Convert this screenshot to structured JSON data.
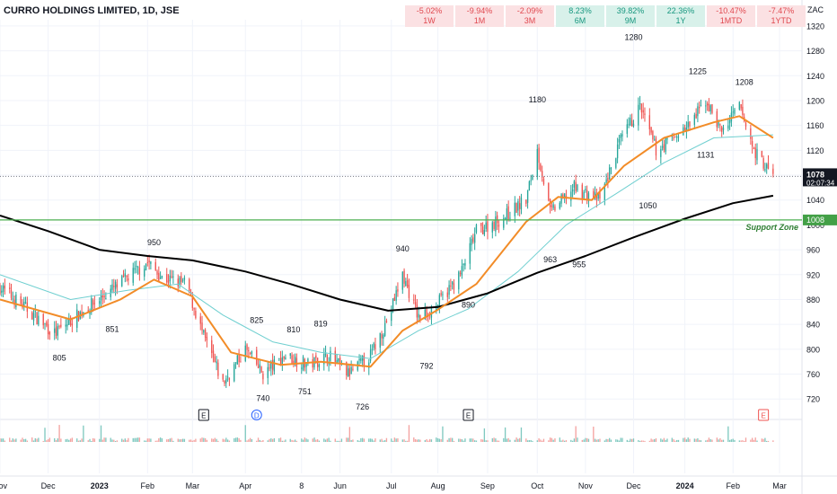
{
  "header": {
    "symbol_title": "CURRO HOLDINGS LIMITED, 1D, JSE",
    "currency": "ZAC"
  },
  "performance": [
    {
      "value": "-5.02%",
      "period": "1W",
      "positive": false
    },
    {
      "value": "-9.94%",
      "period": "1M",
      "positive": false
    },
    {
      "value": "-2.09%",
      "period": "3M",
      "positive": false
    },
    {
      "value": "8.23%",
      "period": "6M",
      "positive": true
    },
    {
      "value": "39.82%",
      "period": "9M",
      "positive": true
    },
    {
      "value": "22.36%",
      "period": "1Y",
      "positive": true
    },
    {
      "value": "-10.47%",
      "period": "1MTD",
      "positive": false
    },
    {
      "value": "-7.47%",
      "period": "1YTD",
      "positive": false
    }
  ],
  "colors": {
    "up": "#26a69a",
    "down": "#ef5350",
    "ema_short": "#f28c28",
    "ma_mid": "#6fcfd0",
    "ma_long": "#000000",
    "support": "#4caf50",
    "support_text": "#2e7d32"
  },
  "chart_data": {
    "type": "line",
    "y_axis": {
      "ticks": [
        720,
        760,
        800,
        840,
        880,
        920,
        960,
        1000,
        1040,
        1080,
        1120,
        1160,
        1200,
        1240,
        1280,
        1320
      ],
      "range": [
        690,
        1330
      ]
    },
    "x_axis": {
      "range": [
        "2022-11-01",
        "2024-03-15"
      ],
      "tick_labels": [
        {
          "date": "2022-11-01",
          "label": "Nov",
          "bold": false
        },
        {
          "date": "2022-12-01",
          "label": "Dec",
          "bold": false
        },
        {
          "date": "2023-01-02",
          "label": "2023",
          "bold": true
        },
        {
          "date": "2023-02-01",
          "label": "Feb",
          "bold": false
        },
        {
          "date": "2023-03-01",
          "label": "Mar",
          "bold": false
        },
        {
          "date": "2023-04-03",
          "label": "Apr",
          "bold": false
        },
        {
          "date": "2023-05-08",
          "label": "8",
          "bold": false
        },
        {
          "date": "2023-06-01",
          "label": "Jun",
          "bold": false
        },
        {
          "date": "2023-07-03",
          "label": "Jul",
          "bold": false
        },
        {
          "date": "2023-08-01",
          "label": "Aug",
          "bold": false
        },
        {
          "date": "2023-09-01",
          "label": "Sep",
          "bold": false
        },
        {
          "date": "2023-10-02",
          "label": "Oct",
          "bold": false
        },
        {
          "date": "2023-11-01",
          "label": "Nov",
          "bold": false
        },
        {
          "date": "2023-12-01",
          "label": "Dec",
          "bold": false
        },
        {
          "date": "2024-01-02",
          "label": "2024",
          "bold": true
        },
        {
          "date": "2024-02-01",
          "label": "Feb",
          "bold": false
        },
        {
          "date": "2024-03-01",
          "label": "Mar",
          "bold": false
        }
      ]
    },
    "price_path": [
      {
        "date": "2022-11-01",
        "value": 900
      },
      {
        "date": "2022-11-20",
        "value": 860
      },
      {
        "date": "2022-12-05",
        "value": 825
      },
      {
        "date": "2022-12-22",
        "value": 860
      },
      {
        "date": "2023-01-12",
        "value": 900
      },
      {
        "date": "2023-02-01",
        "value": 940
      },
      {
        "date": "2023-02-10",
        "value": 915
      },
      {
        "date": "2023-02-25",
        "value": 905
      },
      {
        "date": "2023-03-08",
        "value": 820
      },
      {
        "date": "2023-03-20",
        "value": 745
      },
      {
        "date": "2023-04-03",
        "value": 800
      },
      {
        "date": "2023-04-14",
        "value": 760
      },
      {
        "date": "2023-04-28",
        "value": 790
      },
      {
        "date": "2023-05-12",
        "value": 775
      },
      {
        "date": "2023-05-25",
        "value": 790
      },
      {
        "date": "2023-06-06",
        "value": 760
      },
      {
        "date": "2023-06-20",
        "value": 790
      },
      {
        "date": "2023-07-01",
        "value": 850
      },
      {
        "date": "2023-07-10",
        "value": 920
      },
      {
        "date": "2023-07-20",
        "value": 850
      },
      {
        "date": "2023-07-31",
        "value": 870
      },
      {
        "date": "2023-08-15",
        "value": 920
      },
      {
        "date": "2023-08-25",
        "value": 990
      },
      {
        "date": "2023-09-10",
        "value": 1010
      },
      {
        "date": "2023-09-25",
        "value": 1040
      },
      {
        "date": "2023-10-02",
        "value": 1120
      },
      {
        "date": "2023-10-10",
        "value": 1020
      },
      {
        "date": "2023-10-25",
        "value": 1060
      },
      {
        "date": "2023-11-10",
        "value": 1040
      },
      {
        "date": "2023-11-22",
        "value": 1130
      },
      {
        "date": "2023-12-05",
        "value": 1190
      },
      {
        "date": "2023-12-15",
        "value": 1120
      },
      {
        "date": "2024-01-05",
        "value": 1160
      },
      {
        "date": "2024-01-15",
        "value": 1200
      },
      {
        "date": "2024-01-25",
        "value": 1150
      },
      {
        "date": "2024-02-05",
        "value": 1190
      },
      {
        "date": "2024-02-14",
        "value": 1120
      },
      {
        "date": "2024-02-26",
        "value": 1078
      }
    ],
    "ema_short": [
      {
        "date": "2022-11-01",
        "value": 880
      },
      {
        "date": "2022-12-15",
        "value": 848
      },
      {
        "date": "2023-01-15",
        "value": 880
      },
      {
        "date": "2023-02-05",
        "value": 912
      },
      {
        "date": "2023-03-01",
        "value": 885
      },
      {
        "date": "2023-03-25",
        "value": 795
      },
      {
        "date": "2023-04-25",
        "value": 775
      },
      {
        "date": "2023-05-20",
        "value": 780
      },
      {
        "date": "2023-06-20",
        "value": 772
      },
      {
        "date": "2023-07-10",
        "value": 830
      },
      {
        "date": "2023-07-31",
        "value": 862
      },
      {
        "date": "2023-08-25",
        "value": 905
      },
      {
        "date": "2023-09-25",
        "value": 1005
      },
      {
        "date": "2023-10-15",
        "value": 1045
      },
      {
        "date": "2023-11-05",
        "value": 1040
      },
      {
        "date": "2023-11-25",
        "value": 1095
      },
      {
        "date": "2023-12-20",
        "value": 1140
      },
      {
        "date": "2024-01-20",
        "value": 1165
      },
      {
        "date": "2024-02-05",
        "value": 1175
      },
      {
        "date": "2024-02-26",
        "value": 1140
      }
    ],
    "ma_mid": [
      {
        "date": "2022-11-01",
        "value": 920
      },
      {
        "date": "2022-12-15",
        "value": 880
      },
      {
        "date": "2023-01-20",
        "value": 895
      },
      {
        "date": "2023-02-20",
        "value": 905
      },
      {
        "date": "2023-03-20",
        "value": 855
      },
      {
        "date": "2023-04-20",
        "value": 812
      },
      {
        "date": "2023-05-20",
        "value": 795
      },
      {
        "date": "2023-06-20",
        "value": 785
      },
      {
        "date": "2023-07-20",
        "value": 830
      },
      {
        "date": "2023-08-20",
        "value": 865
      },
      {
        "date": "2023-09-20",
        "value": 925
      },
      {
        "date": "2023-10-20",
        "value": 1000
      },
      {
        "date": "2023-11-20",
        "value": 1050
      },
      {
        "date": "2023-12-20",
        "value": 1100
      },
      {
        "date": "2024-01-20",
        "value": 1140
      },
      {
        "date": "2024-02-26",
        "value": 1145
      }
    ],
    "ma_long": [
      {
        "date": "2022-11-01",
        "value": 1015
      },
      {
        "date": "2022-12-01",
        "value": 990
      },
      {
        "date": "2023-01-02",
        "value": 960
      },
      {
        "date": "2023-02-01",
        "value": 950
      },
      {
        "date": "2023-03-01",
        "value": 943
      },
      {
        "date": "2023-04-03",
        "value": 925
      },
      {
        "date": "2023-05-01",
        "value": 905
      },
      {
        "date": "2023-06-01",
        "value": 880
      },
      {
        "date": "2023-07-01",
        "value": 862
      },
      {
        "date": "2023-08-01",
        "value": 868
      },
      {
        "date": "2023-09-01",
        "value": 890
      },
      {
        "date": "2023-10-02",
        "value": 923
      },
      {
        "date": "2023-11-01",
        "value": 950
      },
      {
        "date": "2023-12-01",
        "value": 980
      },
      {
        "date": "2024-01-02",
        "value": 1010
      },
      {
        "date": "2024-02-01",
        "value": 1035
      },
      {
        "date": "2024-02-26",
        "value": 1047
      }
    ],
    "point_labels": [
      {
        "date": "2022-12-08",
        "value": 805,
        "text": "805",
        "pos": "below"
      },
      {
        "date": "2023-01-10",
        "value": 851,
        "text": "851",
        "pos": "below"
      },
      {
        "date": "2023-02-05",
        "value": 950,
        "text": "950",
        "pos": "above"
      },
      {
        "date": "2023-04-10",
        "value": 825,
        "text": "825",
        "pos": "above"
      },
      {
        "date": "2023-04-14",
        "value": 740,
        "text": "740",
        "pos": "below"
      },
      {
        "date": "2023-05-03",
        "value": 810,
        "text": "810",
        "pos": "above"
      },
      {
        "date": "2023-05-10",
        "value": 751,
        "text": "751",
        "pos": "below"
      },
      {
        "date": "2023-05-20",
        "value": 819,
        "text": "819",
        "pos": "above"
      },
      {
        "date": "2023-06-15",
        "value": 726,
        "text": "726",
        "pos": "below"
      },
      {
        "date": "2023-07-10",
        "value": 940,
        "text": "940",
        "pos": "above"
      },
      {
        "date": "2023-07-25",
        "value": 792,
        "text": "792",
        "pos": "below"
      },
      {
        "date": "2023-08-20",
        "value": 890,
        "text": "890",
        "pos": "below"
      },
      {
        "date": "2023-10-02",
        "value": 1180,
        "text": "1180",
        "pos": "above"
      },
      {
        "date": "2023-10-10",
        "value": 963,
        "text": "963",
        "pos": "below"
      },
      {
        "date": "2023-10-28",
        "value": 955,
        "text": "955",
        "pos": "below"
      },
      {
        "date": "2023-12-01",
        "value": 1280,
        "text": "1280",
        "pos": "above"
      },
      {
        "date": "2023-12-10",
        "value": 1050,
        "text": "1050",
        "pos": "below"
      },
      {
        "date": "2024-01-10",
        "value": 1225,
        "text": "1225",
        "pos": "above"
      },
      {
        "date": "2024-01-15",
        "value": 1131,
        "text": "1131",
        "pos": "below"
      },
      {
        "date": "2024-02-08",
        "value": 1208,
        "text": "1208",
        "pos": "above"
      }
    ],
    "support": {
      "value": 1008,
      "label": "Support Zone"
    },
    "last_price": {
      "value": 1078,
      "label": "1078",
      "countdown": "02:07:34"
    },
    "event_markers": [
      {
        "date": "2023-03-08",
        "letter": "E",
        "kind": "earnings"
      },
      {
        "date": "2023-04-10",
        "letter": "D",
        "kind": "dividend"
      },
      {
        "date": "2023-08-20",
        "letter": "E",
        "kind": "earnings"
      },
      {
        "date": "2024-02-20",
        "letter": "E",
        "kind": "earnings-upcoming"
      }
    ],
    "volume": {
      "range": [
        0,
        20
      ]
    }
  }
}
